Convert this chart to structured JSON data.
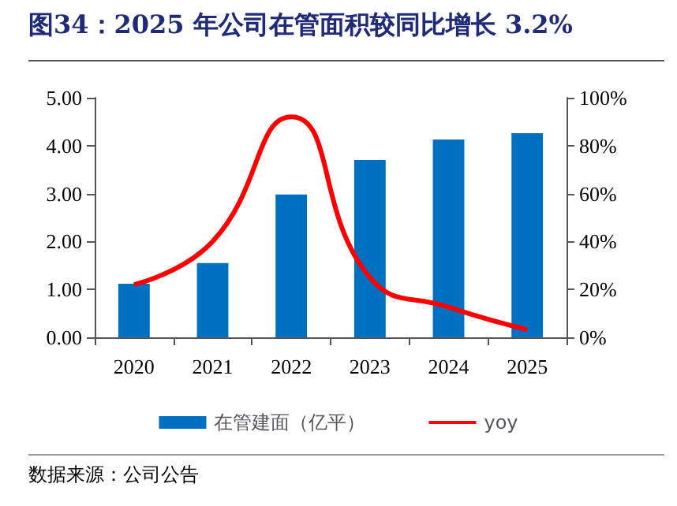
{
  "chart_data": {
    "type": "bar",
    "title": "图34：2025 年公司在管面积较同比增长 3.2%",
    "categories": [
      "2020",
      "2021",
      "2022",
      "2023",
      "2024",
      "2025"
    ],
    "series": [
      {
        "name": "在管建面（亿平）",
        "color": "#0070c0",
        "values": [
          1.12,
          1.55,
          2.98,
          3.7,
          4.13,
          4.26
        ]
      },
      {
        "name": "yoy",
        "type": "line",
        "axis": "y2",
        "color": "#ff0000",
        "marker": "none",
        "values": [
          22,
          40,
          92,
          25,
          12.6,
          3.2
        ]
      }
    ],
    "ylim": [
      0,
      5
    ],
    "yticks": [
      {
        "value": 0,
        "label": "0.00"
      },
      {
        "value": 1,
        "label": "1.00"
      },
      {
        "value": 2,
        "label": "2.00"
      },
      {
        "value": 3,
        "label": "3.00"
      },
      {
        "value": 4,
        "label": "4.00"
      },
      {
        "value": 5,
        "label": "5.00"
      }
    ],
    "y2lim": [
      0,
      100
    ],
    "y2ticks": [
      {
        "value": 0,
        "label": "0%"
      },
      {
        "value": 20,
        "label": "20%"
      },
      {
        "value": 40,
        "label": "40%"
      },
      {
        "value": 60,
        "label": "60%"
      },
      {
        "value": 80,
        "label": "80%"
      },
      {
        "value": 100,
        "label": "100%"
      }
    ],
    "grid": false,
    "legend": "bottom",
    "annotations": [
      "数据来源：公司公告"
    ]
  }
}
